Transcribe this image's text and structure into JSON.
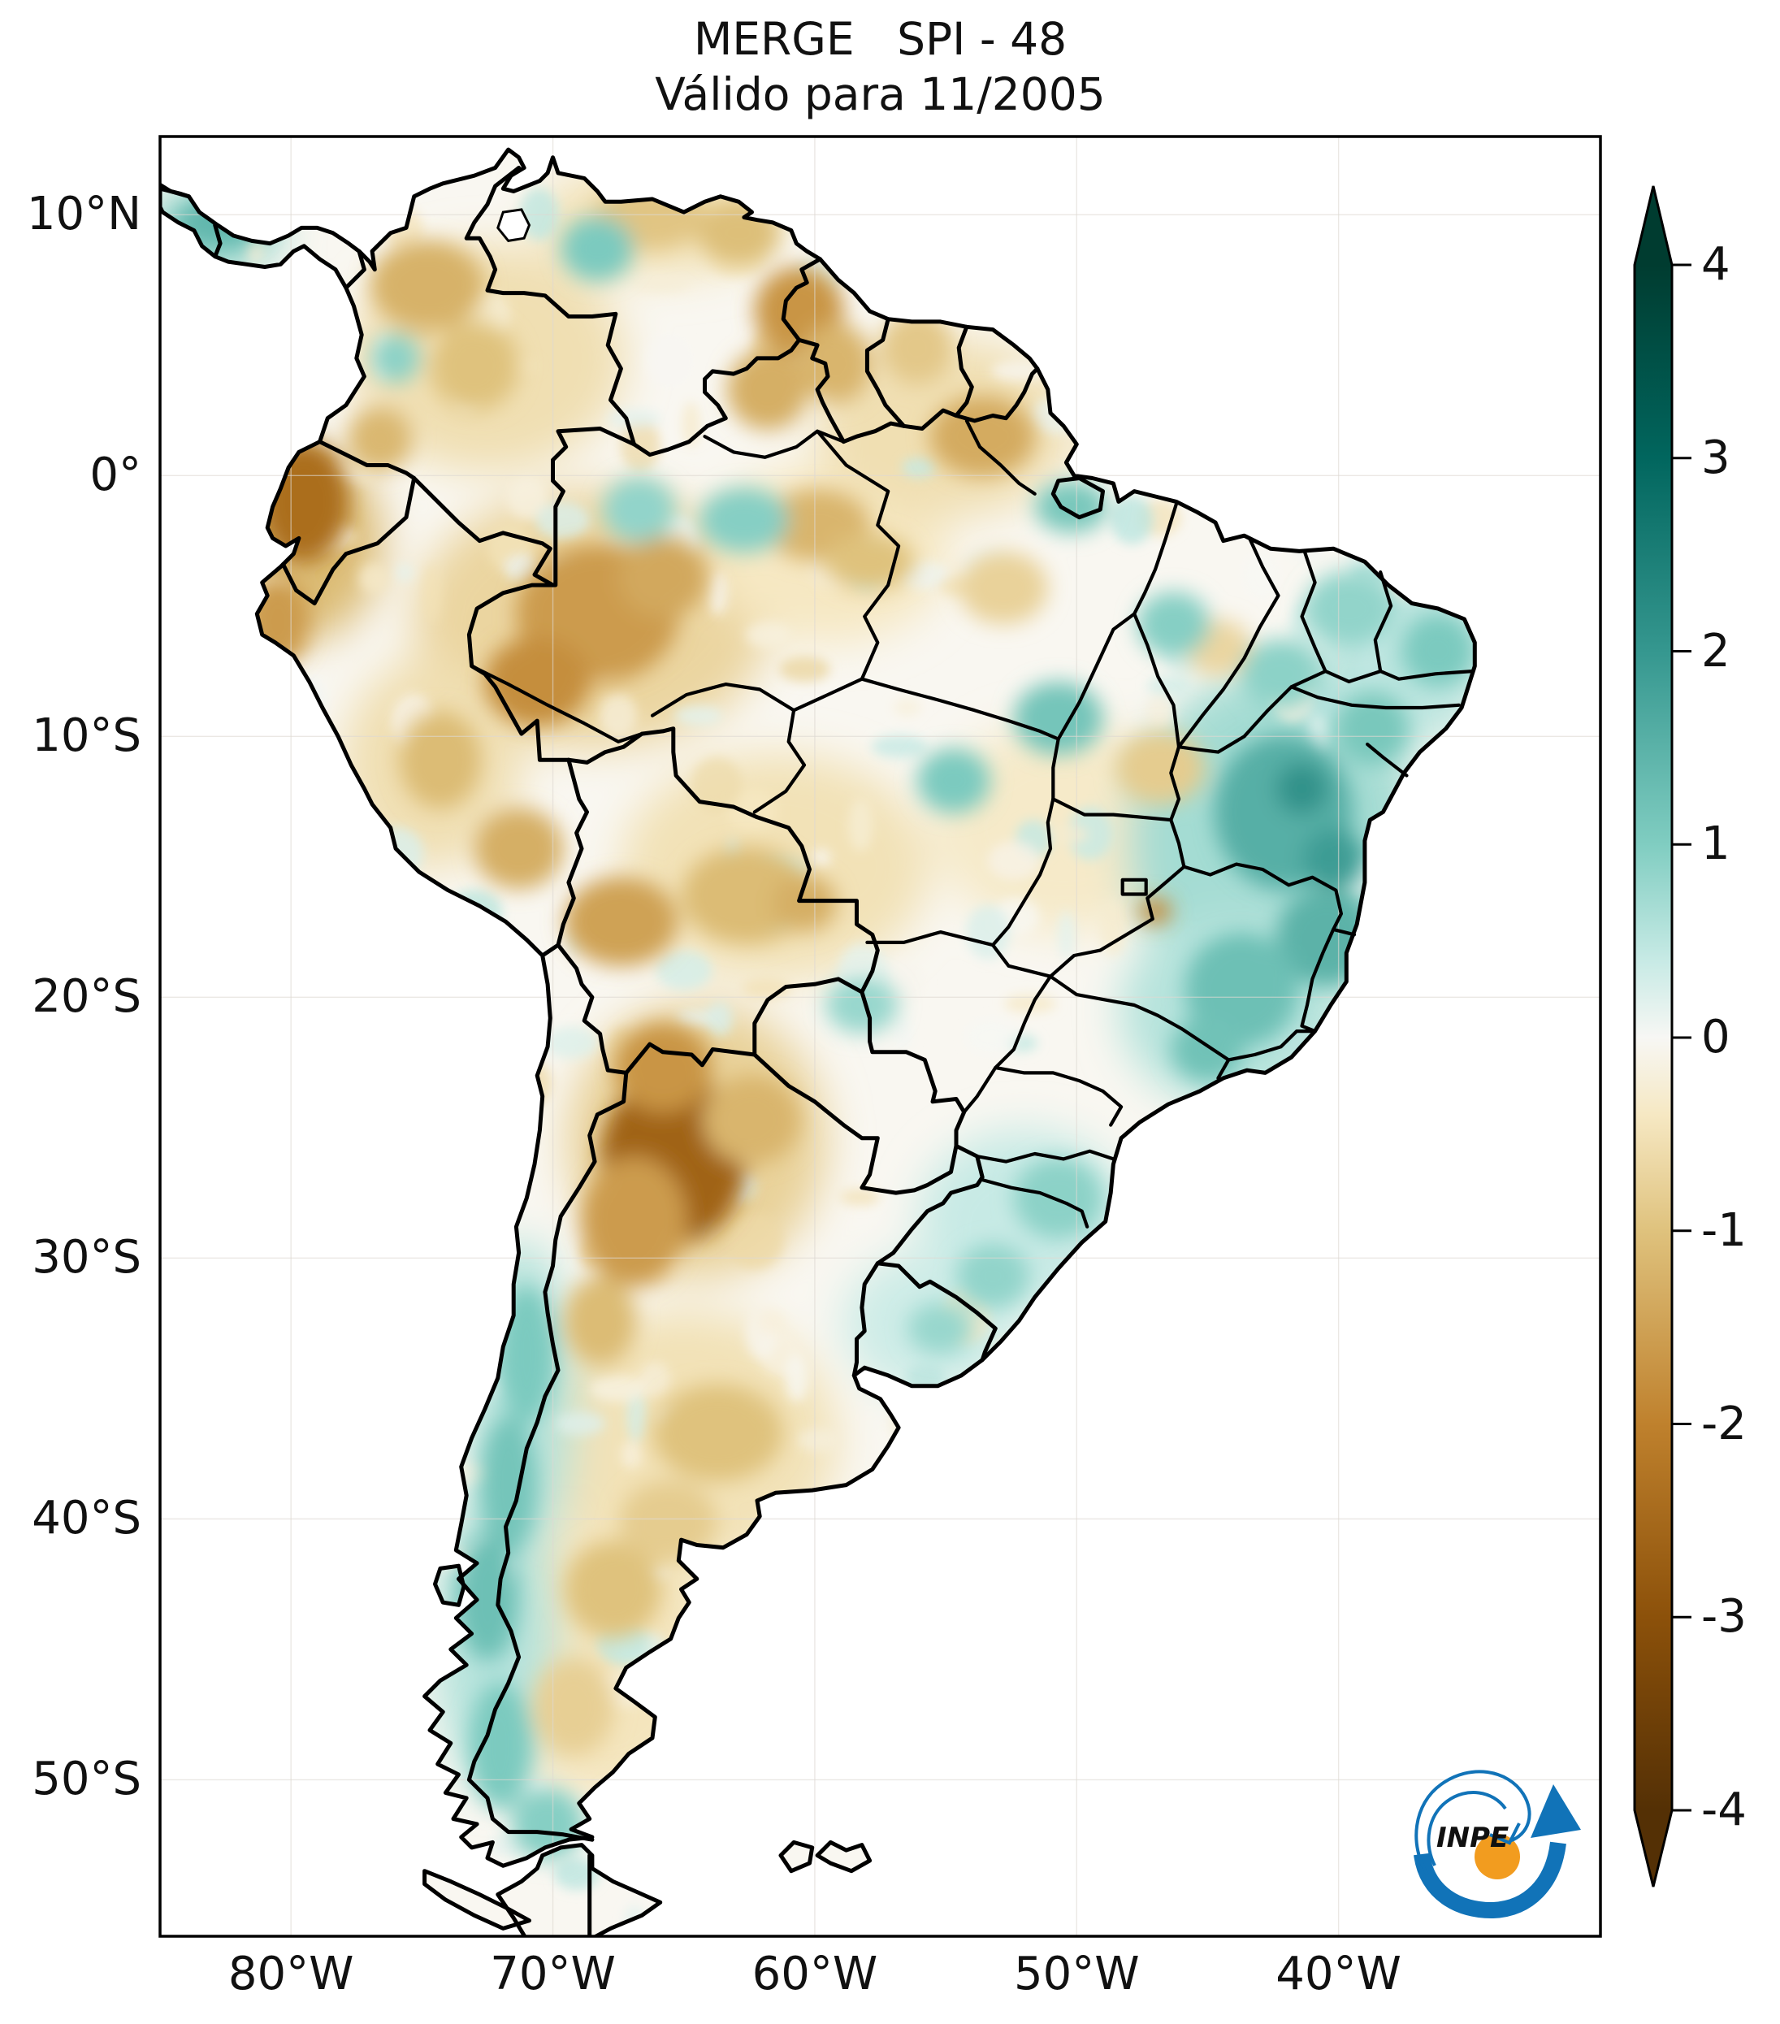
{
  "figure": {
    "title_line1": "MERGE   SPI - 48",
    "title_line2": "Válido para 11/2005"
  },
  "axes": {
    "x_ticks": [
      {
        "label": "80°W",
        "lon": -80
      },
      {
        "label": "70°W",
        "lon": -70
      },
      {
        "label": "60°W",
        "lon": -60
      },
      {
        "label": "50°W",
        "lon": -50
      },
      {
        "label": "40°W",
        "lon": -40
      }
    ],
    "y_ticks": [
      {
        "label": "10°N",
        "lat": 10
      },
      {
        "label": "0°",
        "lat": 0
      },
      {
        "label": "10°S",
        "lat": -10
      },
      {
        "label": "20°S",
        "lat": -20
      },
      {
        "label": "30°S",
        "lat": -30
      },
      {
        "label": "40°S",
        "lat": -40
      },
      {
        "label": "50°S",
        "lat": -50
      }
    ],
    "extent": {
      "lon_min": -85,
      "lon_max": -30,
      "lat_min": -56,
      "lat_max": 13
    }
  },
  "colorbar": {
    "vmin": -4,
    "vmax": 4,
    "ticks": [
      {
        "label": "4",
        "value": 4
      },
      {
        "label": "3",
        "value": 3
      },
      {
        "label": "2",
        "value": 2
      },
      {
        "label": "1",
        "value": 1
      },
      {
        "label": "0",
        "value": 0
      },
      {
        "label": "-1",
        "value": -1
      },
      {
        "label": "-2",
        "value": -2
      },
      {
        "label": "-3",
        "value": -3
      },
      {
        "label": "-4",
        "value": -4
      }
    ],
    "cmap_stops": [
      {
        "v": -4,
        "c": "#543005"
      },
      {
        "v": -3,
        "c": "#8c510a"
      },
      {
        "v": -2,
        "c": "#bf812d"
      },
      {
        "v": -1,
        "c": "#dfc27d"
      },
      {
        "v": -0.4,
        "c": "#f6e8c3"
      },
      {
        "v": 0,
        "c": "#f7f7f4"
      },
      {
        "v": 0.4,
        "c": "#c7eae5"
      },
      {
        "v": 1,
        "c": "#80cdc1"
      },
      {
        "v": 2,
        "c": "#35978f"
      },
      {
        "v": 3,
        "c": "#01665e"
      },
      {
        "v": 4,
        "c": "#003c30"
      }
    ]
  },
  "logo": {
    "text": "INPE",
    "blue": "#1173b8",
    "orange": "#f29c1f"
  },
  "chart_data": {
    "type": "heatmap",
    "variable": "SPI-48",
    "dataset": "MERGE",
    "valid_for": "11/2005",
    "region": "South America",
    "colormap": "BrBG",
    "value_range": [
      -4,
      4
    ],
    "anomaly_washes": [
      [
        -72.5,
        4.5,
        170,
        140,
        -0.55
      ],
      [
        -66,
        9.8,
        150,
        70,
        -0.5
      ],
      [
        -68.5,
        -5.5,
        220,
        160,
        -0.7
      ],
      [
        -59.5,
        -3,
        150,
        110,
        -0.4
      ],
      [
        -55,
        1.8,
        160,
        110,
        -0.55
      ],
      [
        -61.5,
        -15,
        190,
        140,
        -0.5
      ],
      [
        -64.5,
        -25.5,
        160,
        170,
        -0.75
      ],
      [
        -65,
        -37,
        190,
        160,
        -0.5
      ],
      [
        -68,
        -45.5,
        150,
        170,
        -0.45
      ],
      [
        -50.5,
        -13.5,
        160,
        130,
        -0.35
      ],
      [
        -42.5,
        -14,
        180,
        210,
        0.7
      ],
      [
        -44,
        -20.5,
        140,
        120,
        0.55
      ],
      [
        -37.5,
        -7,
        110,
        110,
        0.5
      ],
      [
        -71.2,
        -35.5,
        65,
        200,
        0.55
      ],
      [
        -72.2,
        -44.5,
        75,
        190,
        0.55
      ],
      [
        -52,
        -28.5,
        130,
        110,
        0.4
      ],
      [
        -55.5,
        -32.5,
        110,
        90,
        0.35
      ],
      [
        -83,
        9.4,
        85,
        55,
        0.85
      ],
      [
        -79.6,
        -2.6,
        100,
        120,
        -1.1
      ],
      [
        -74.6,
        -11,
        110,
        130,
        -0.55
      ]
    ],
    "anomaly_cores": [
      [
        -79.5,
        -1.0,
        55,
        75,
        -2.4
      ],
      [
        -80.5,
        -5.6,
        40,
        55,
        -1.6
      ],
      [
        -74.8,
        7.3,
        70,
        55,
        -1.25
      ],
      [
        -73.0,
        4.2,
        55,
        55,
        -1.0
      ],
      [
        -76.6,
        1.4,
        40,
        40,
        -1.15
      ],
      [
        -66.3,
        9.9,
        70,
        40,
        -0.95
      ],
      [
        -62.9,
        9.3,
        50,
        40,
        -1.05
      ],
      [
        -60.6,
        6.3,
        55,
        55,
        -1.7
      ],
      [
        -59.2,
        4.3,
        45,
        50,
        -1.2
      ],
      [
        -61.8,
        3.3,
        50,
        50,
        -1.3
      ],
      [
        -53.6,
        1.5,
        65,
        50,
        -1.35
      ],
      [
        -56.1,
        4.9,
        45,
        45,
        -0.9
      ],
      [
        -68.3,
        -5.3,
        100,
        85,
        -1.6
      ],
      [
        -70.6,
        -7.9,
        65,
        55,
        -1.8
      ],
      [
        -65.8,
        -3.9,
        55,
        50,
        -1.4
      ],
      [
        -59.9,
        -1.9,
        65,
        45,
        -1.2
      ],
      [
        -57.9,
        -3.3,
        55,
        35,
        -1.0
      ],
      [
        -74.3,
        -10.9,
        50,
        60,
        -1.1
      ],
      [
        -71.3,
        -14.3,
        55,
        50,
        -1.3
      ],
      [
        -67.4,
        -17.1,
        70,
        55,
        -1.5
      ],
      [
        -62.6,
        -16.1,
        80,
        60,
        -1.1
      ],
      [
        -60.4,
        -16.4,
        40,
        35,
        -1.3
      ],
      [
        -65.4,
        -26.2,
        90,
        105,
        -2.6
      ],
      [
        -66.9,
        -28.6,
        65,
        80,
        -1.6
      ],
      [
        -65.8,
        -22.7,
        60,
        55,
        -1.7
      ],
      [
        -62.4,
        -24.7,
        60,
        55,
        -1.2
      ],
      [
        -68.2,
        -32.4,
        45,
        55,
        -1.1
      ],
      [
        -47.0,
        -16.7,
        20,
        16,
        -1.9
      ],
      [
        -63.7,
        -36.7,
        80,
        60,
        -1.0
      ],
      [
        -67.7,
        -42.7,
        60,
        60,
        -1.0
      ],
      [
        -69.2,
        -47.2,
        50,
        60,
        -0.8
      ],
      [
        -65.6,
        -40.1,
        60,
        50,
        -0.85
      ],
      [
        -44.6,
        -6.6,
        40,
        35,
        -0.7
      ],
      [
        -52.8,
        -4.3,
        55,
        45,
        -0.75
      ],
      [
        -46.8,
        -11.2,
        55,
        45,
        -0.85
      ],
      [
        -42.1,
        -12.9,
        85,
        95,
        1.55
      ],
      [
        -40.5,
        -17.7,
        60,
        60,
        1.5
      ],
      [
        -43.7,
        -19.7,
        70,
        70,
        1.25
      ],
      [
        -41.4,
        -12.0,
        32,
        32,
        2.1
      ],
      [
        -40.2,
        -14.7,
        38,
        38,
        1.9
      ],
      [
        -38.7,
        -9.7,
        45,
        45,
        1.1
      ],
      [
        -36.2,
        -6.7,
        45,
        45,
        1.05
      ],
      [
        -39.6,
        -5.1,
        55,
        45,
        0.85
      ],
      [
        -42.2,
        -7.6,
        50,
        42,
        0.9
      ],
      [
        -45.0,
        -22.0,
        45,
        40,
        1.2
      ],
      [
        -50.7,
        -9.3,
        55,
        45,
        1.15
      ],
      [
        -54.7,
        -11.7,
        45,
        40,
        1.05
      ],
      [
        -46.3,
        -5.7,
        45,
        40,
        0.95
      ],
      [
        -50.2,
        -1.2,
        45,
        32,
        1.1
      ],
      [
        -62.7,
        -1.7,
        55,
        40,
        0.95
      ],
      [
        -66.7,
        -1.3,
        45,
        40,
        0.85
      ],
      [
        -68.3,
        8.7,
        45,
        40,
        1.05
      ],
      [
        -76.0,
        4.5,
        30,
        30,
        0.9
      ],
      [
        -82.7,
        9.7,
        55,
        30,
        1.4
      ],
      [
        -58.2,
        -20.3,
        45,
        35,
        0.8
      ],
      [
        -71.0,
        -33.7,
        35,
        85,
        1.05
      ],
      [
        -71.7,
        -38.7,
        35,
        85,
        1.15
      ],
      [
        -72.5,
        -43.0,
        38,
        78,
        1.25
      ],
      [
        -72.0,
        -48.7,
        38,
        78,
        1.05
      ],
      [
        -70.2,
        -51.7,
        45,
        45,
        0.95
      ],
      [
        -53.2,
        -30.7,
        45,
        40,
        0.85
      ],
      [
        -50.7,
        -27.7,
        55,
        50,
        0.9
      ],
      [
        -55.2,
        -32.7,
        40,
        32,
        0.8
      ]
    ]
  }
}
